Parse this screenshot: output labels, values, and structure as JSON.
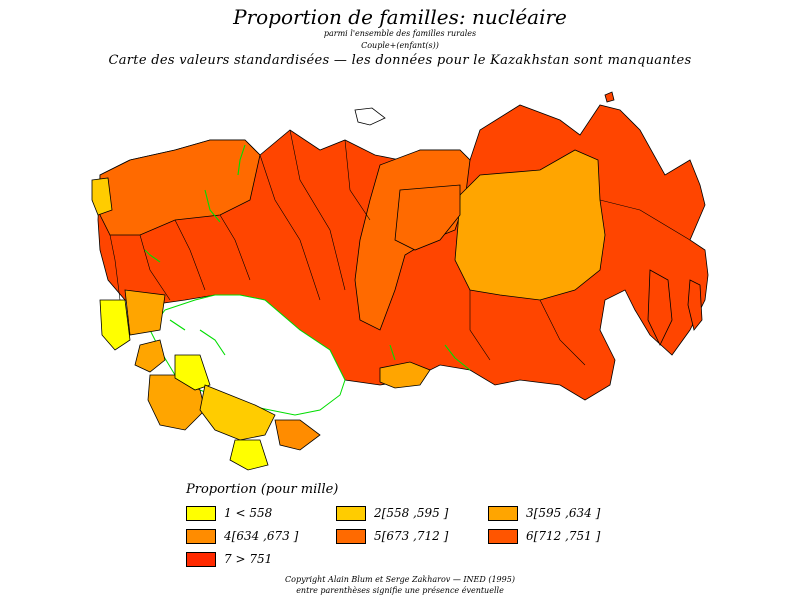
{
  "header": {
    "title": "Proportion  de  familles:  nucléaire",
    "subtitle1": "parmi  l'ensemble  des  familles  rurales",
    "subtitle2": "Couple+(enfant(s))",
    "subtitle3": "Carte  des  valeurs  standardisées  —  les  données  pour  le  Kazakhstan  sont  manquantes"
  },
  "colors": {
    "c1": "#ffff00",
    "c2": "#ffcc00",
    "c3": "#ffa500",
    "c4": "#ff8c00",
    "c5": "#ff6a00",
    "c6": "#ff4500",
    "c7": "#ff2a00",
    "missing": "#ffffff",
    "border_internal": "#000000",
    "border_green": "#00dd00"
  },
  "legend": {
    "title": "Proportion  (pour  mille)",
    "items": [
      {
        "label": "1  <  558",
        "color": "#ffff00"
      },
      {
        "label": "2[558 ,595 ]",
        "color": "#ffcc00"
      },
      {
        "label": "3[595 ,634 ]",
        "color": "#ffa500"
      },
      {
        "label": "4[634 ,673 ]",
        "color": "#ff8c00"
      },
      {
        "label": "5[673 ,712 ]",
        "color": "#ff6a00"
      },
      {
        "label": "6[712 ,751 ]",
        "color": "#ff5500"
      },
      {
        "label": "7  >  751",
        "color": "#ff2a00"
      }
    ]
  },
  "footer": {
    "line1": "Copyright  Alain  Blum  et  Serge  Zakharov  —  INED  (1995)",
    "line2": "entre  parenthèses  signifie  une  présence  éventuelle"
  }
}
